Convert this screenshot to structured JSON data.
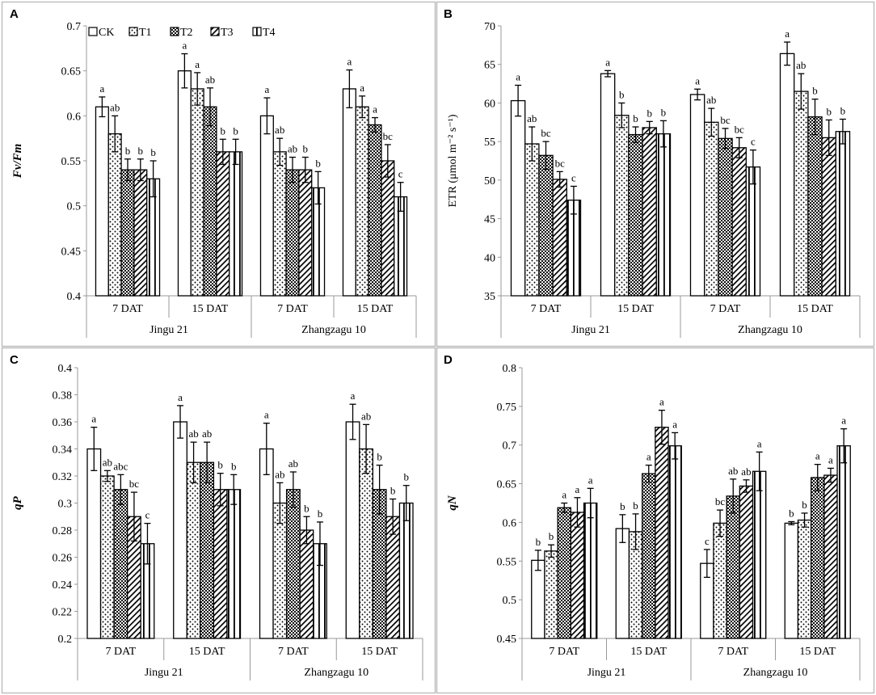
{
  "legend": [
    "CK",
    "T1",
    "T2",
    "T3",
    "T4"
  ],
  "colors": {
    "frame": "#bfbfbf",
    "axis": "#999999",
    "ink": "#000000",
    "fill": "#ffffff"
  },
  "chart_data": [
    {
      "panel": "A",
      "type": "bar",
      "ylabel": "Fv/Fm",
      "ylim": [
        0.4,
        0.7
      ],
      "ystep": 0.05,
      "ydec": 2,
      "yticks": [
        "0.4",
        "0.45",
        "0.5",
        "0.55",
        "0.6",
        "0.65",
        "0.7"
      ],
      "groups": [
        {
          "name": "Jingu 21",
          "sub": [
            "7 DAT",
            "15 DAT"
          ]
        },
        {
          "name": "Zhangzagu 10",
          "sub": [
            "7 DAT",
            "15 DAT"
          ]
        }
      ],
      "series": [
        {
          "name": "CK",
          "values": [
            0.61,
            0.65,
            0.6,
            0.63
          ],
          "errors": [
            0.011,
            0.019,
            0.02,
            0.021
          ],
          "letters": [
            "a",
            "a",
            "a",
            "a"
          ]
        },
        {
          "name": "T1",
          "values": [
            0.58,
            0.63,
            0.56,
            0.61
          ],
          "errors": [
            0.02,
            0.018,
            0.015,
            0.012
          ],
          "letters": [
            "ab",
            "a",
            "ab",
            "a"
          ]
        },
        {
          "name": "T2",
          "values": [
            0.54,
            0.61,
            0.54,
            0.59
          ],
          "errors": [
            0.012,
            0.021,
            0.014,
            0.008
          ],
          "letters": [
            "b",
            "ab",
            "ab",
            "a"
          ]
        },
        {
          "name": "T3",
          "values": [
            0.54,
            0.56,
            0.54,
            0.55
          ],
          "errors": [
            0.012,
            0.014,
            0.014,
            0.018
          ],
          "letters": [
            "b",
            "b",
            "b",
            "bc"
          ]
        },
        {
          "name": "T4",
          "values": [
            0.53,
            0.56,
            0.52,
            0.51
          ],
          "errors": [
            0.02,
            0.014,
            0.018,
            0.016
          ],
          "letters": [
            "b",
            "b",
            "b",
            "c"
          ]
        }
      ]
    },
    {
      "panel": "B",
      "type": "bar",
      "ylabel": "ETR (μmol m⁻² s⁻¹)",
      "ylim": [
        35,
        70
      ],
      "ystep": 5,
      "ydec": 0,
      "yticks": [
        "35",
        "40",
        "45",
        "50",
        "55",
        "60",
        "65",
        "70"
      ],
      "groups": [
        {
          "name": "Jingu 21",
          "sub": [
            "7 DAT",
            "15 DAT"
          ]
        },
        {
          "name": "Zhangzagu 10",
          "sub": [
            "7 DAT",
            "15 DAT"
          ]
        }
      ],
      "series": [
        {
          "name": "CK",
          "values": [
            60.3,
            63.8,
            61.1,
            66.4
          ],
          "errors": [
            2.0,
            0.4,
            0.7,
            1.5
          ],
          "letters": [
            "a",
            "a",
            "a",
            "a"
          ]
        },
        {
          "name": "T1",
          "values": [
            54.7,
            58.4,
            57.5,
            61.5
          ],
          "errors": [
            2.2,
            1.6,
            1.8,
            2.3
          ],
          "letters": [
            "ab",
            "b",
            "ab",
            "ab"
          ]
        },
        {
          "name": "T2",
          "values": [
            53.2,
            55.9,
            55.4,
            58.2
          ],
          "errors": [
            1.8,
            1.0,
            1.3,
            2.3
          ],
          "letters": [
            "bc",
            "b",
            "bc",
            "b"
          ]
        },
        {
          "name": "T3",
          "values": [
            50.1,
            56.8,
            54.2,
            55.5
          ],
          "errors": [
            1.0,
            0.8,
            1.3,
            2.3
          ],
          "letters": [
            "bc",
            "b",
            "bc",
            "b"
          ]
        },
        {
          "name": "T4",
          "values": [
            47.4,
            56.0,
            51.7,
            56.3
          ],
          "errors": [
            1.8,
            1.7,
            2.2,
            1.6
          ],
          "letters": [
            "c",
            "b",
            "c",
            "b"
          ]
        }
      ]
    },
    {
      "panel": "C",
      "type": "bar",
      "ylabel": "qP",
      "ylim": [
        0.2,
        0.4
      ],
      "ystep": 0.02,
      "ydec": 2,
      "yticks": [
        "0.2",
        "0.22",
        "0.24",
        "0.26",
        "0.28",
        "0.3",
        "0.32",
        "0.34",
        "0.36",
        "0.38",
        "0.4"
      ],
      "groups": [
        {
          "name": "Jingu 21",
          "sub": [
            "7 DAT",
            "15 DAT"
          ]
        },
        {
          "name": "Zhangzagu 10",
          "sub": [
            "7 DAT",
            "15 DAT"
          ]
        }
      ],
      "series": [
        {
          "name": "CK",
          "values": [
            0.34,
            0.36,
            0.34,
            0.36
          ],
          "errors": [
            0.016,
            0.012,
            0.019,
            0.013
          ],
          "letters": [
            "a",
            "a",
            "a",
            "a"
          ]
        },
        {
          "name": "T1",
          "values": [
            0.32,
            0.33,
            0.3,
            0.34
          ],
          "errors": [
            0.004,
            0.015,
            0.015,
            0.018
          ],
          "letters": [
            "ab",
            "ab",
            "ab",
            "ab"
          ]
        },
        {
          "name": "T2",
          "values": [
            0.31,
            0.33,
            0.31,
            0.31
          ],
          "errors": [
            0.011,
            0.015,
            0.013,
            0.018
          ],
          "letters": [
            "abc",
            "ab",
            "ab",
            "b"
          ]
        },
        {
          "name": "T3",
          "values": [
            0.29,
            0.31,
            0.28,
            0.29
          ],
          "errors": [
            0.018,
            0.012,
            0.01,
            0.013
          ],
          "letters": [
            "bc",
            "b",
            "b",
            "b"
          ]
        },
        {
          "name": "T4",
          "values": [
            0.27,
            0.31,
            0.27,
            0.3
          ],
          "errors": [
            0.015,
            0.011,
            0.016,
            0.013
          ],
          "letters": [
            "c",
            "b",
            "b",
            "b"
          ]
        }
      ]
    },
    {
      "panel": "D",
      "type": "bar",
      "ylabel": "qN",
      "ylim": [
        0.45,
        0.8
      ],
      "ystep": 0.05,
      "ydec": 2,
      "yticks": [
        "0.45",
        "0.5",
        "0.55",
        "0.6",
        "0.65",
        "0.7",
        "0.75",
        "0.8"
      ],
      "groups": [
        {
          "name": "Jingu 21",
          "sub": [
            "7 DAT",
            "15 DAT"
          ]
        },
        {
          "name": "Zhangzagu 10",
          "sub": [
            "7 DAT",
            "15 DAT"
          ]
        }
      ],
      "series": [
        {
          "name": "CK",
          "values": [
            0.551,
            0.592,
            0.547,
            0.599
          ],
          "errors": [
            0.013,
            0.018,
            0.018,
            0.002
          ],
          "letters": [
            "b",
            "b",
            "c",
            "b"
          ]
        },
        {
          "name": "T1",
          "values": [
            0.563,
            0.588,
            0.599,
            0.603
          ],
          "errors": [
            0.008,
            0.023,
            0.017,
            0.009
          ],
          "letters": [
            "b",
            "b",
            "bc",
            "b"
          ]
        },
        {
          "name": "T2",
          "values": [
            0.619,
            0.663,
            0.634,
            0.658
          ],
          "errors": [
            0.006,
            0.011,
            0.022,
            0.017
          ],
          "letters": [
            "a",
            "a",
            "ab",
            "a"
          ]
        },
        {
          "name": "T3",
          "values": [
            0.613,
            0.723,
            0.647,
            0.661
          ],
          "errors": [
            0.019,
            0.022,
            0.008,
            0.009
          ],
          "letters": [
            "a",
            "a",
            "ab",
            "a"
          ]
        },
        {
          "name": "T4",
          "values": [
            0.625,
            0.699,
            0.666,
            0.699
          ],
          "errors": [
            0.019,
            0.017,
            0.025,
            0.022
          ],
          "letters": [
            "a",
            "a",
            "a",
            "a"
          ]
        }
      ]
    }
  ]
}
